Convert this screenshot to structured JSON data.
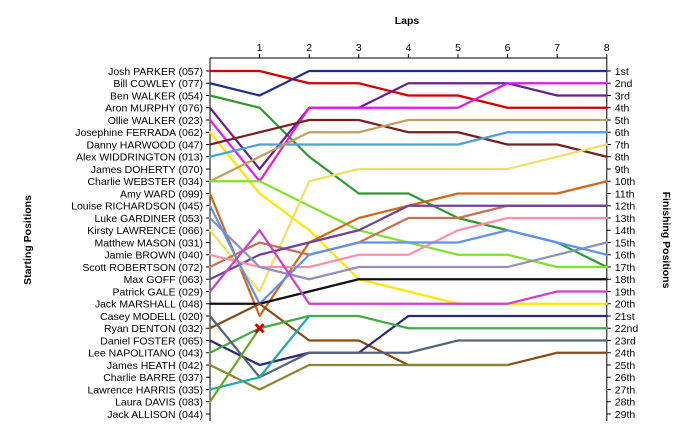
{
  "chart_data": {
    "type": "line",
    "title": "",
    "x_axis_title": "Laps",
    "left_axis_title": "Starting Positions",
    "right_axis_title": "Finishing Positions",
    "x_ticks": [
      1,
      2,
      3,
      4,
      5,
      6,
      7,
      8
    ],
    "starting_positions": [
      "Josh PARKER (057)",
      "Bill COWLEY (077)",
      "Ben WALKER (054)",
      "Aron MURPHY (076)",
      "Ollie WALKER (023)",
      "Josephine FERRADA (062)",
      "Danny HARWOOD (047)",
      "Alex WIDDRINGTON (013)",
      "James DOHERTY (070)",
      "Charlie WEBSTER (034)",
      "Amy WARD (099)",
      "Louise RICHARDSON (045)",
      "Luke GARDINER (053)",
      "Kirsty LAWRENCE (066)",
      "Matthew MASON (031)",
      "Jamie BROWN (040)",
      "Scott ROBERTSON (072)",
      "Max GOFF (063)",
      "Patrick GALE (029)",
      "Jack MARSHALL (048)",
      "Casey MODELL (020)",
      "Ryan DENTON (032)",
      "Daniel FOSTER (065)",
      "Lee NAPOLITANO (043)",
      "James HEATH (042)",
      "Charlie BARRE (037)",
      "Lawrence HARRIS (035)",
      "Laura DAVIS (083)",
      "Jack ALLISON (044)"
    ],
    "finishing_positions": [
      "1st",
      "2nd",
      "3rd",
      "4th",
      "5th",
      "6th",
      "7th",
      "8th",
      "9th",
      "10th",
      "11th",
      "12th",
      "13th",
      "14th",
      "15th",
      "16th",
      "17th",
      "18th",
      "19th",
      "20th",
      "21st",
      "22nd",
      "23rd",
      "24th",
      "25th",
      "26th",
      "27th",
      "28th",
      "29th"
    ],
    "series": [
      {
        "color": "#CC0000",
        "values": [
          1,
          1,
          2,
          2,
          3,
          3,
          4,
          4,
          4
        ]
      },
      {
        "color": "#1F2F8F",
        "values": [
          2,
          3,
          1,
          1,
          1,
          1,
          1,
          1,
          1
        ]
      },
      {
        "color": "#2E9A2E",
        "values": [
          3,
          4,
          8,
          11,
          11,
          13,
          14,
          15,
          17
        ]
      },
      {
        "color": "#6B1F8C",
        "values": [
          4,
          9,
          4,
          4,
          2,
          2,
          2,
          3,
          3
        ]
      },
      {
        "color": "#E21BE2",
        "values": [
          5,
          10,
          4,
          4,
          4,
          4,
          2,
          2,
          2
        ]
      },
      {
        "color": "#FFE600",
        "values": [
          6,
          11,
          14,
          18,
          19,
          20,
          20,
          20,
          20
        ]
      },
      {
        "color": "#7A1F1F",
        "values": [
          7,
          6,
          5,
          5,
          6,
          6,
          7,
          7,
          8
        ]
      },
      {
        "color": "#4AA0D8",
        "values": [
          8,
          7,
          7,
          7,
          7,
          7,
          6,
          6,
          6
        ]
      },
      {
        "color": "#C0A060",
        "values": [
          10,
          8,
          6,
          6,
          5,
          5,
          5,
          5,
          5
        ]
      },
      {
        "color": "#80E030",
        "values": [
          10,
          10,
          12,
          14,
          15,
          16,
          16,
          17,
          17
        ]
      },
      {
        "color": "#D06818",
        "values": [
          11,
          21,
          15,
          13,
          12,
          11,
          11,
          11,
          10
        ]
      },
      {
        "color": "#EEE060",
        "values": [
          14,
          19,
          10,
          9,
          9,
          9,
          9,
          8,
          7
        ]
      },
      {
        "color": "#C87050",
        "values": [
          17,
          15,
          16,
          15,
          13,
          13,
          12,
          12,
          12
        ]
      },
      {
        "color": "#7040A0",
        "values": [
          18,
          16,
          15,
          14,
          12,
          12,
          12,
          12,
          12
        ]
      },
      {
        "color": "#FF90A8",
        "values": [
          16,
          17,
          17,
          16,
          16,
          14,
          13,
          13,
          13
        ]
      },
      {
        "color": "#9090C0",
        "values": [
          13,
          17,
          18,
          17,
          17,
          17,
          17,
          16,
          15
        ]
      },
      {
        "color": "#6090F0",
        "values": [
          12,
          20,
          16,
          15,
          15,
          15,
          14,
          15,
          16
        ]
      },
      {
        "color": "#111111",
        "values": [
          20,
          20,
          19,
          18,
          18,
          18,
          18,
          18,
          18
        ]
      },
      {
        "color": "#CC40CC",
        "values": [
          19,
          14,
          20,
          20,
          20,
          20,
          20,
          19,
          19
        ]
      },
      {
        "color": "#8B4A14",
        "values": [
          22,
          20,
          23,
          23,
          25,
          25,
          25,
          24,
          24
        ]
      },
      {
        "color": "#2A2A7A",
        "values": [
          23,
          25,
          24,
          24,
          21,
          21,
          21,
          21,
          21
        ]
      },
      {
        "color": "#44AA44",
        "values": [
          24,
          22,
          21,
          21,
          22,
          22,
          22,
          22,
          22
        ]
      },
      {
        "color": "#556677",
        "values": [
          21,
          26,
          24,
          24,
          24,
          23,
          23,
          23,
          23
        ]
      },
      {
        "color": "#888833",
        "values": [
          25,
          27,
          25,
          25,
          25,
          25,
          25
        ]
      },
      {
        "color": "#22AAAA",
        "values": [
          27,
          26,
          21
        ]
      },
      {
        "color": "#66AA22",
        "values": [
          28,
          22
        ]
      }
    ],
    "retired_marker": {
      "lap": 1,
      "position": 22,
      "color": "#CC0000"
    }
  }
}
